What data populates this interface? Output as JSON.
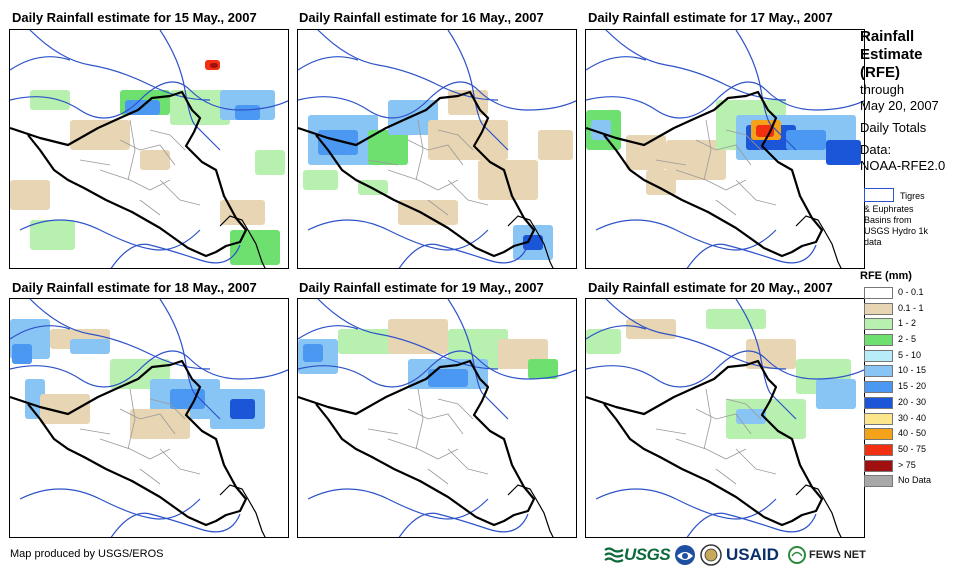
{
  "panels": [
    {
      "title": "Daily Rainfall estimate for 15 May., 2007",
      "day": 15
    },
    {
      "title": "Daily Rainfall estimate for 16 May., 2007",
      "day": 16
    },
    {
      "title": "Daily Rainfall estimate for 17 May., 2007",
      "day": 17
    },
    {
      "title": "Daily Rainfall estimate for 18 May., 2007",
      "day": 18
    },
    {
      "title": "Daily Rainfall estimate for 19 May., 2007",
      "day": 19
    },
    {
      "title": "Daily Rainfall estimate for 20 May., 2007",
      "day": 20
    }
  ],
  "legend": {
    "title": "Rainfall Estimate (RFE)",
    "through": "through",
    "through_date": "May 20, 2007",
    "totals": "Daily Totals",
    "data_label": "Data:",
    "data_source": "NOAA-RFE2.0",
    "basin_first": "Tigres",
    "basin_rest": "& Euphrates Basins from USGS Hydro 1k data",
    "rfe_title": "RFE (mm)",
    "classes": [
      {
        "label": "0 - 0.1",
        "color": "#ffffff"
      },
      {
        "label": "0.1 - 1",
        "color": "#e8d5b3"
      },
      {
        "label": "1 - 2",
        "color": "#b8f0b0"
      },
      {
        "label": "2 - 5",
        "color": "#6ee070"
      },
      {
        "label": "5 - 10",
        "color": "#b8ecf8"
      },
      {
        "label": "10 - 15",
        "color": "#88c4f4"
      },
      {
        "label": "15 - 20",
        "color": "#4a98f2"
      },
      {
        "label": "20 - 30",
        "color": "#1b55d8"
      },
      {
        "label": "30 - 40",
        "color": "#fbe68c"
      },
      {
        "label": "40 - 50",
        "color": "#f4a21a"
      },
      {
        "label": "50 - 75",
        "color": "#f03010"
      },
      {
        "label": "> 75",
        "color": "#a01010"
      },
      {
        "label": "No Data",
        "color": "#a8a8a8"
      }
    ]
  },
  "footer": {
    "credit": "Map produced by USGS/EROS",
    "logos": {
      "usgs": "USGS",
      "usaid": "USAID",
      "fews": "FEWS NET"
    }
  },
  "colors": {
    "border": "#000000",
    "river": "#2d52c9",
    "admin": "#9a9a9a"
  }
}
